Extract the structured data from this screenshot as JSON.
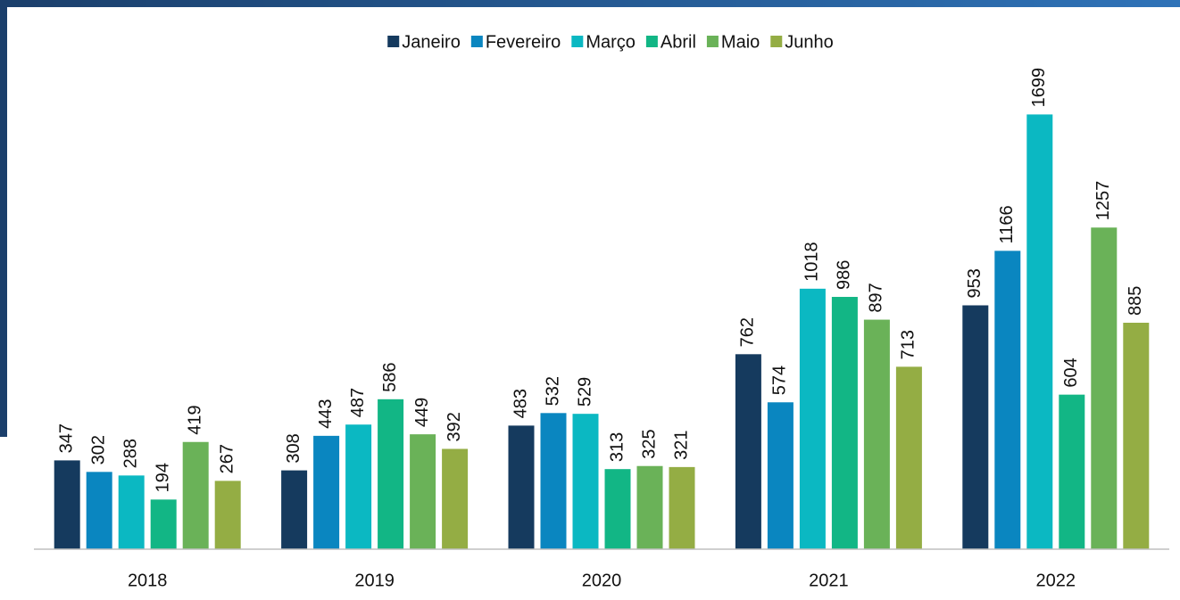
{
  "chart_data": {
    "type": "bar",
    "categories": [
      "2018",
      "2019",
      "2020",
      "2021",
      "2022"
    ],
    "series": [
      {
        "name": "Janeiro",
        "color": "#153a5e",
        "values": [
          347,
          308,
          483,
          762,
          953
        ]
      },
      {
        "name": "Fevereiro",
        "color": "#0a86c0",
        "values": [
          302,
          443,
          532,
          574,
          1166
        ]
      },
      {
        "name": "Março",
        "color": "#0bb8c2",
        "values": [
          288,
          487,
          529,
          1018,
          1699
        ]
      },
      {
        "name": "Abril",
        "color": "#12b685",
        "values": [
          194,
          586,
          313,
          986,
          604
        ]
      },
      {
        "name": "Maio",
        "color": "#6ab258",
        "values": [
          419,
          449,
          325,
          897,
          1257
        ]
      },
      {
        "name": "Junho",
        "color": "#94ad44",
        "values": [
          267,
          392,
          321,
          713,
          885
        ]
      }
    ],
    "ylim": [
      0,
      2000
    ],
    "legend": "top",
    "data_labels": true
  }
}
